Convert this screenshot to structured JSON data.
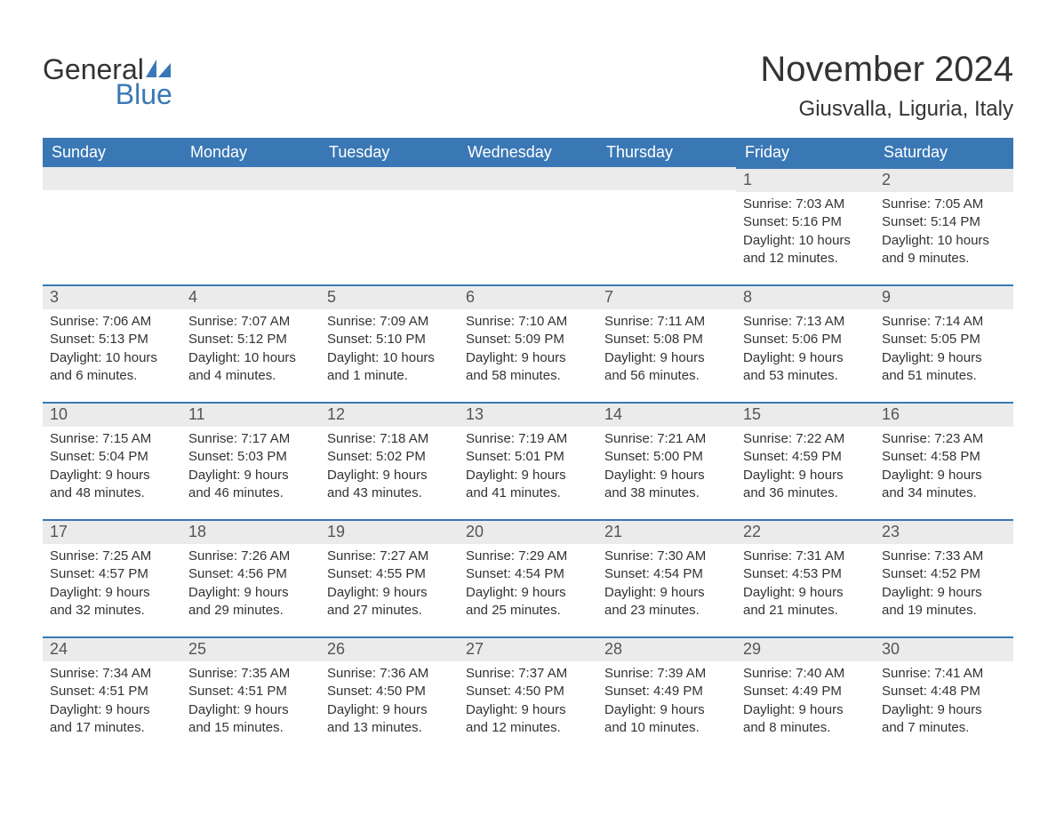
{
  "logo": {
    "word1": "General",
    "word2": "Blue",
    "color_general": "#333333",
    "color_blue": "#3a78b5"
  },
  "title": "November 2024",
  "location": "Giusvalla, Liguria, Italy",
  "colors": {
    "header_bg": "#3a78b5",
    "header_fg": "#ffffff",
    "daynum_bg": "#ebebeb",
    "daynum_border": "#3a78b5",
    "body_bg": "#ffffff",
    "text": "#333333"
  },
  "typography": {
    "title_fontsize": 40,
    "location_fontsize": 24,
    "header_fontsize": 18,
    "daynum_fontsize": 18,
    "body_fontsize": 15,
    "font_family": "Arial"
  },
  "layout": {
    "columns": 7,
    "rows": 5,
    "leading_blanks": 5
  },
  "weekdays": [
    "Sunday",
    "Monday",
    "Tuesday",
    "Wednesday",
    "Thursday",
    "Friday",
    "Saturday"
  ],
  "days": [
    {
      "n": 1,
      "sunrise": "7:03 AM",
      "sunset": "5:16 PM",
      "daylight": "10 hours and 12 minutes."
    },
    {
      "n": 2,
      "sunrise": "7:05 AM",
      "sunset": "5:14 PM",
      "daylight": "10 hours and 9 minutes."
    },
    {
      "n": 3,
      "sunrise": "7:06 AM",
      "sunset": "5:13 PM",
      "daylight": "10 hours and 6 minutes."
    },
    {
      "n": 4,
      "sunrise": "7:07 AM",
      "sunset": "5:12 PM",
      "daylight": "10 hours and 4 minutes."
    },
    {
      "n": 5,
      "sunrise": "7:09 AM",
      "sunset": "5:10 PM",
      "daylight": "10 hours and 1 minute."
    },
    {
      "n": 6,
      "sunrise": "7:10 AM",
      "sunset": "5:09 PM",
      "daylight": "9 hours and 58 minutes."
    },
    {
      "n": 7,
      "sunrise": "7:11 AM",
      "sunset": "5:08 PM",
      "daylight": "9 hours and 56 minutes."
    },
    {
      "n": 8,
      "sunrise": "7:13 AM",
      "sunset": "5:06 PM",
      "daylight": "9 hours and 53 minutes."
    },
    {
      "n": 9,
      "sunrise": "7:14 AM",
      "sunset": "5:05 PM",
      "daylight": "9 hours and 51 minutes."
    },
    {
      "n": 10,
      "sunrise": "7:15 AM",
      "sunset": "5:04 PM",
      "daylight": "9 hours and 48 minutes."
    },
    {
      "n": 11,
      "sunrise": "7:17 AM",
      "sunset": "5:03 PM",
      "daylight": "9 hours and 46 minutes."
    },
    {
      "n": 12,
      "sunrise": "7:18 AM",
      "sunset": "5:02 PM",
      "daylight": "9 hours and 43 minutes."
    },
    {
      "n": 13,
      "sunrise": "7:19 AM",
      "sunset": "5:01 PM",
      "daylight": "9 hours and 41 minutes."
    },
    {
      "n": 14,
      "sunrise": "7:21 AM",
      "sunset": "5:00 PM",
      "daylight": "9 hours and 38 minutes."
    },
    {
      "n": 15,
      "sunrise": "7:22 AM",
      "sunset": "4:59 PM",
      "daylight": "9 hours and 36 minutes."
    },
    {
      "n": 16,
      "sunrise": "7:23 AM",
      "sunset": "4:58 PM",
      "daylight": "9 hours and 34 minutes."
    },
    {
      "n": 17,
      "sunrise": "7:25 AM",
      "sunset": "4:57 PM",
      "daylight": "9 hours and 32 minutes."
    },
    {
      "n": 18,
      "sunrise": "7:26 AM",
      "sunset": "4:56 PM",
      "daylight": "9 hours and 29 minutes."
    },
    {
      "n": 19,
      "sunrise": "7:27 AM",
      "sunset": "4:55 PM",
      "daylight": "9 hours and 27 minutes."
    },
    {
      "n": 20,
      "sunrise": "7:29 AM",
      "sunset": "4:54 PM",
      "daylight": "9 hours and 25 minutes."
    },
    {
      "n": 21,
      "sunrise": "7:30 AM",
      "sunset": "4:54 PM",
      "daylight": "9 hours and 23 minutes."
    },
    {
      "n": 22,
      "sunrise": "7:31 AM",
      "sunset": "4:53 PM",
      "daylight": "9 hours and 21 minutes."
    },
    {
      "n": 23,
      "sunrise": "7:33 AM",
      "sunset": "4:52 PM",
      "daylight": "9 hours and 19 minutes."
    },
    {
      "n": 24,
      "sunrise": "7:34 AM",
      "sunset": "4:51 PM",
      "daylight": "9 hours and 17 minutes."
    },
    {
      "n": 25,
      "sunrise": "7:35 AM",
      "sunset": "4:51 PM",
      "daylight": "9 hours and 15 minutes."
    },
    {
      "n": 26,
      "sunrise": "7:36 AM",
      "sunset": "4:50 PM",
      "daylight": "9 hours and 13 minutes."
    },
    {
      "n": 27,
      "sunrise": "7:37 AM",
      "sunset": "4:50 PM",
      "daylight": "9 hours and 12 minutes."
    },
    {
      "n": 28,
      "sunrise": "7:39 AM",
      "sunset": "4:49 PM",
      "daylight": "9 hours and 10 minutes."
    },
    {
      "n": 29,
      "sunrise": "7:40 AM",
      "sunset": "4:49 PM",
      "daylight": "9 hours and 8 minutes."
    },
    {
      "n": 30,
      "sunrise": "7:41 AM",
      "sunset": "4:48 PM",
      "daylight": "9 hours and 7 minutes."
    }
  ],
  "labels": {
    "sunrise": "Sunrise:",
    "sunset": "Sunset:",
    "daylight": "Daylight:"
  }
}
